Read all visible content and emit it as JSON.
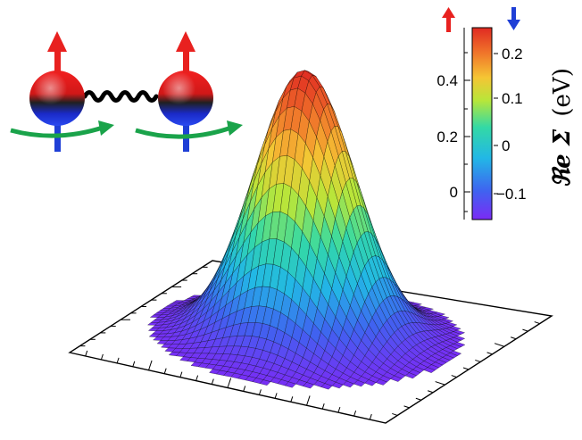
{
  "figure": {
    "description_free": true,
    "colorbar": {
      "left_ticks": [
        "0.4",
        "0.2",
        "0"
      ],
      "right_ticks": [
        "0.2",
        "0.1",
        "0",
        "−0.1"
      ],
      "label_main": "ℜe Σ",
      "label_unit": "(eV)",
      "left_arrow": "up",
      "right_arrow": "down",
      "left_arrow_color": "#e8211f",
      "right_arrow_color": "#1f3fd6",
      "gradient": [
        "#7b2bf5",
        "#3f63f0",
        "#22b7e6",
        "#33d9a6",
        "#b7e63a",
        "#f5c534",
        "#f0742a",
        "#e02a22"
      ]
    },
    "spins": {
      "count": 2,
      "spin_top_color": "#e8211f",
      "spin_bottom_color": "#1f3fd6",
      "rotation_color": "#1aa34a",
      "coupling": "wavy-link"
    },
    "surface": {
      "shape": "gaussian-peak",
      "colormap": "rainbow"
    }
  }
}
